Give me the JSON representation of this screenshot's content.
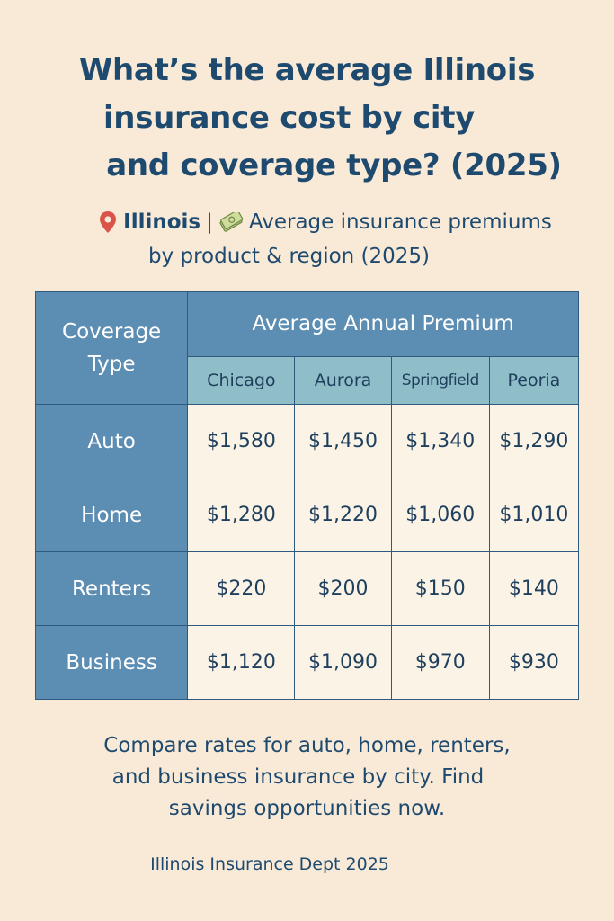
{
  "title": {
    "line1": "What’s the average Illinois",
    "line2": "insurance cost by city",
    "line3": "and coverage type? (2025)"
  },
  "subtitle": {
    "state": "Illinois",
    "separator": "|",
    "text1": "Average insurance premiums",
    "text2": "by product & region (2025)",
    "pin_icon": "map-pin-icon",
    "money_icon": "money-icon"
  },
  "chart_data": {
    "type": "table",
    "title": "Average Annual Premium",
    "row_header": "Coverage Type",
    "columns": [
      "Chicago",
      "Aurora",
      "Springfield",
      "Peoria"
    ],
    "rows": [
      {
        "label": "Auto",
        "values": [
          "$1,580",
          "$1,450",
          "$1,340",
          "$1,290"
        ]
      },
      {
        "label": "Home",
        "values": [
          "$1,280",
          "$1,220",
          "$1,060",
          "$1,010"
        ]
      },
      {
        "label": "Renters",
        "values": [
          "$220",
          "$200",
          "$150",
          "$140"
        ]
      },
      {
        "label": "Business",
        "values": [
          "$1,120",
          "$1,090",
          "$970",
          "$930"
        ]
      }
    ]
  },
  "cta": {
    "line1": "Compare rates for auto, home, renters,",
    "line2": "and business insurance by city. Find",
    "line3": "savings opportunities now."
  },
  "source": "Illinois Insurance Dept 2025",
  "colors": {
    "background": "#f8ead6",
    "header": "#5c8db3",
    "subheader": "#8fbdc8",
    "cell": "#fbf4e6",
    "text": "#1f4a70"
  }
}
